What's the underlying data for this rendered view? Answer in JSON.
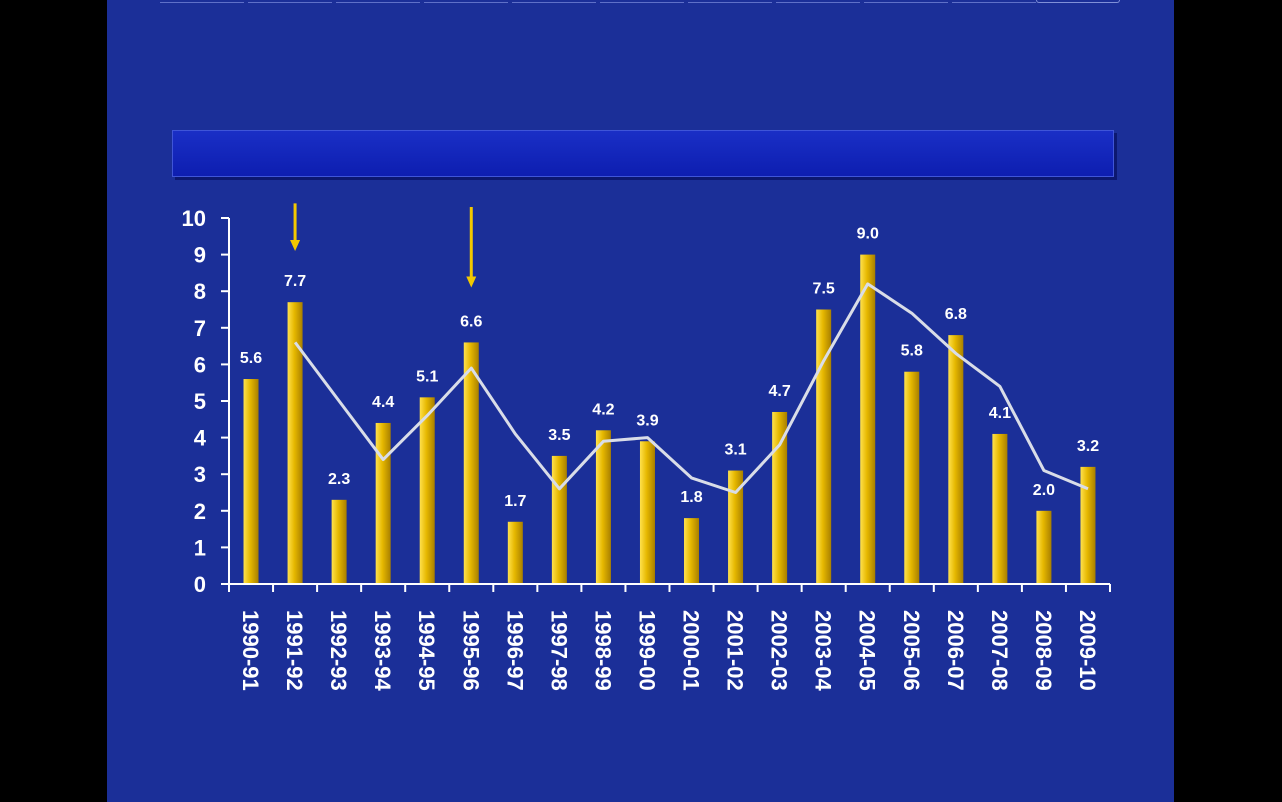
{
  "chart_data": {
    "type": "bar",
    "title": "",
    "xlabel": "",
    "ylabel": "",
    "ylim": [
      0,
      10
    ],
    "yticks": [
      0,
      1,
      2,
      3,
      4,
      5,
      6,
      7,
      8,
      9,
      10
    ],
    "categories": [
      "1990-91",
      "1991-92",
      "1992-93",
      "1993-94",
      "1994-95",
      "1995-96",
      "1996-97",
      "1997-98",
      "1998-99",
      "1999-00",
      "2000-01",
      "2001-02",
      "2002-03",
      "2003-04",
      "2004-05",
      "2005-06",
      "2006-07",
      "2007-08",
      "2008-09",
      "2009-10"
    ],
    "series": [
      {
        "type": "bar",
        "values": [
          5.6,
          7.7,
          2.3,
          4.4,
          5.1,
          6.6,
          1.7,
          3.5,
          4.2,
          3.9,
          1.8,
          3.1,
          4.7,
          7.5,
          9.0,
          5.8,
          6.8,
          4.1,
          2.0,
          3.2
        ],
        "labels": [
          "5.6",
          "7.7",
          "2.3",
          "4.4",
          "5.1",
          "6.6",
          "1.7",
          "3.5",
          "4.2",
          "3.9",
          "1.8",
          "3.1",
          "4.7",
          "7.5",
          "9.0",
          "5.8",
          "6.8",
          "4.1",
          "2.0",
          "3.2"
        ],
        "color": "#e6b800"
      },
      {
        "type": "line",
        "x": [
          "1991-92",
          "1992-93",
          "1993-94",
          "1994-95",
          "1995-96",
          "1996-97",
          "1997-98",
          "1998-99",
          "1999-00",
          "2000-01",
          "2001-02",
          "2002-03",
          "2003-04",
          "2004-05",
          "2005-06",
          "2006-07",
          "2007-08",
          "2008-09",
          "2009-10"
        ],
        "values": [
          6.6,
          5.0,
          3.4,
          4.6,
          5.9,
          4.1,
          2.6,
          3.9,
          4.0,
          2.9,
          2.5,
          3.8,
          6.1,
          8.2,
          7.4,
          6.3,
          5.4,
          3.1,
          2.6
        ],
        "color": "#d9dde8"
      }
    ],
    "annotations": [
      {
        "type": "arrow-down",
        "category": "1991-92",
        "from": 10.4,
        "to": 9.1,
        "color": "#f2c800"
      },
      {
        "type": "arrow-down",
        "category": "1995-96",
        "from": 10.3,
        "to": 8.1,
        "color": "#f2c800"
      }
    ],
    "grid": false,
    "legend": "none",
    "colors": {
      "background": "#1b2f98",
      "axis": "#ffffff",
      "text": "#ffffff"
    }
  }
}
